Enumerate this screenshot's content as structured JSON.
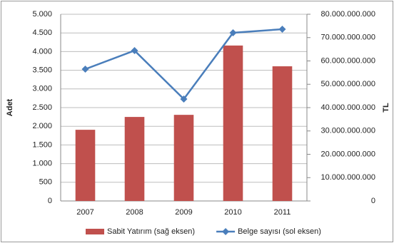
{
  "chart_data": {
    "type": "combo",
    "categories": [
      "2007",
      "2008",
      "2009",
      "2010",
      "2011"
    ],
    "y_label": "Adet",
    "y2_label": "TL",
    "series": [
      {
        "name": "Sabit Yatırım (sağ eksen)",
        "type": "bar",
        "color": "#c0504d",
        "axis": "y2",
        "values": [
          30500000000,
          36000000000,
          36900000000,
          66600000000,
          57700000000
        ]
      },
      {
        "name": "Belge sayısı (sol eksen)",
        "type": "line",
        "color": "#4a7ebb",
        "values": [
          3530,
          4027,
          2729,
          4504,
          4599
        ]
      }
    ],
    "ylim": [
      0,
      5000
    ],
    "yticks": [
      0,
      {
        "value": 500,
        "label": "500"
      },
      {
        "value": 1000,
        "label": "1.000"
      },
      {
        "value": 1500,
        "label": "1.500"
      },
      {
        "value": 2000,
        "label": "2.000"
      },
      {
        "value": 2500,
        "label": "2.500"
      },
      {
        "value": 3000,
        "label": "3.000"
      },
      {
        "value": 3500,
        "label": "3.500"
      },
      {
        "value": 4000,
        "label": "4.000"
      },
      {
        "value": 4500,
        "label": "4.500"
      },
      {
        "value": 5000,
        "label": "5.000"
      }
    ],
    "y2lim": [
      0,
      80000000000
    ],
    "y2ticks": [
      0,
      {
        "value": 10000000000,
        "label": "10.000.000.000"
      },
      {
        "value": 20000000000,
        "label": "20.000.000.000"
      },
      {
        "value": 30000000000,
        "label": "30.000.000.000"
      },
      {
        "value": 40000000000,
        "label": "40.000.000.000"
      },
      {
        "value": 50000000000,
        "label": "50.000.000.000"
      },
      {
        "value": 60000000000,
        "label": "60.000.000.000"
      },
      {
        "value": 70000000000,
        "label": "70.000.000.000"
      },
      {
        "value": 80000000000,
        "label": "80.000.000.000"
      }
    ],
    "grid": true
  }
}
